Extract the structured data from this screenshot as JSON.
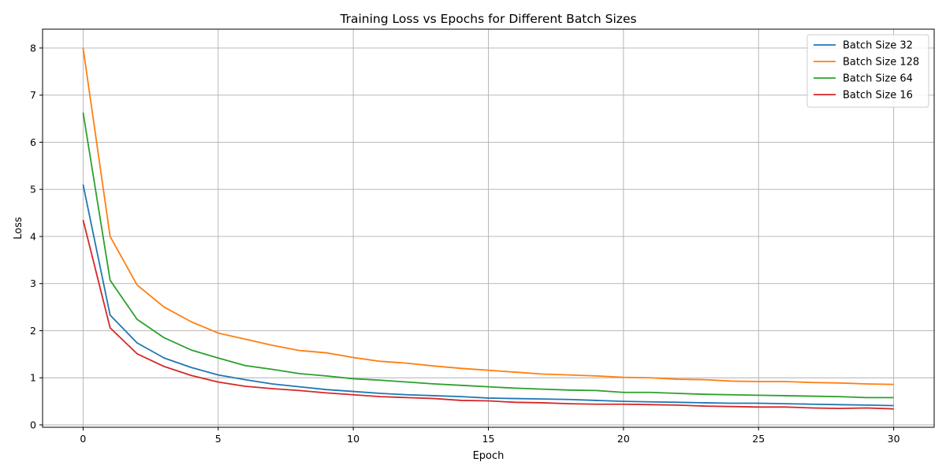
{
  "chart_data": {
    "type": "line",
    "title": "Training Loss vs Epochs for Different Batch Sizes",
    "xlabel": "Epoch",
    "ylabel": "Loss",
    "xlim": [
      -1.5,
      31.5
    ],
    "ylim": [
      -0.05,
      8.4
    ],
    "xticks": [
      0,
      5,
      10,
      15,
      20,
      25,
      30
    ],
    "yticks": [
      0,
      1,
      2,
      3,
      4,
      5,
      6,
      7,
      8
    ],
    "grid": true,
    "legend_position": "top-right",
    "x": [
      0,
      1,
      2,
      3,
      4,
      5,
      6,
      7,
      8,
      9,
      10,
      11,
      12,
      13,
      14,
      15,
      16,
      17,
      18,
      19,
      20,
      21,
      22,
      23,
      24,
      25,
      26,
      27,
      28,
      29,
      30
    ],
    "series": [
      {
        "name": "Batch Size 32",
        "color": "#1f77b4",
        "values": [
          5.1,
          2.33,
          1.74,
          1.42,
          1.22,
          1.06,
          0.96,
          0.87,
          0.81,
          0.75,
          0.71,
          0.67,
          0.64,
          0.62,
          0.6,
          0.57,
          0.56,
          0.55,
          0.54,
          0.52,
          0.5,
          0.49,
          0.48,
          0.47,
          0.46,
          0.46,
          0.45,
          0.44,
          0.43,
          0.42,
          0.41
        ]
      },
      {
        "name": "Batch Size 128",
        "color": "#ff7f0e",
        "values": [
          8.0,
          4.0,
          2.97,
          2.5,
          2.19,
          1.95,
          1.82,
          1.69,
          1.58,
          1.53,
          1.43,
          1.35,
          1.31,
          1.25,
          1.2,
          1.16,
          1.12,
          1.08,
          1.06,
          1.04,
          1.01,
          1.0,
          0.97,
          0.96,
          0.93,
          0.92,
          0.92,
          0.9,
          0.89,
          0.87,
          0.86
        ]
      },
      {
        "name": "Batch Size 64",
        "color": "#2ca02c",
        "values": [
          6.63,
          3.07,
          2.24,
          1.85,
          1.59,
          1.42,
          1.26,
          1.18,
          1.09,
          1.04,
          0.98,
          0.95,
          0.91,
          0.87,
          0.84,
          0.81,
          0.78,
          0.76,
          0.74,
          0.73,
          0.69,
          0.69,
          0.67,
          0.65,
          0.64,
          0.63,
          0.62,
          0.61,
          0.6,
          0.58,
          0.58
        ]
      },
      {
        "name": "Batch Size 16",
        "color": "#d62728",
        "values": [
          4.35,
          2.06,
          1.51,
          1.24,
          1.05,
          0.91,
          0.82,
          0.77,
          0.73,
          0.68,
          0.64,
          0.6,
          0.58,
          0.56,
          0.52,
          0.51,
          0.48,
          0.47,
          0.45,
          0.44,
          0.44,
          0.43,
          0.42,
          0.4,
          0.39,
          0.38,
          0.38,
          0.36,
          0.35,
          0.36,
          0.34
        ]
      }
    ]
  }
}
